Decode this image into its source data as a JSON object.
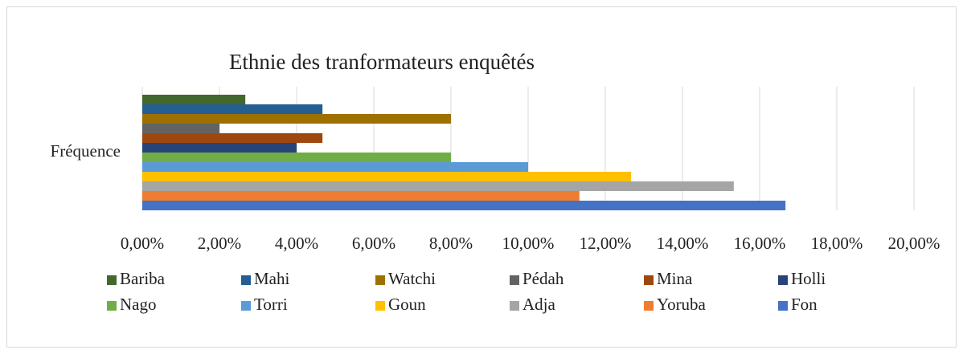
{
  "chart_data": {
    "type": "bar",
    "orientation": "horizontal",
    "title": "Ethnie des tranformateurs enquêtés",
    "categories": [
      "Fréquence"
    ],
    "series": [
      {
        "name": "Bariba",
        "color": "#43682b",
        "values": [
          2.67
        ]
      },
      {
        "name": "Mahi",
        "color": "#255e91",
        "values": [
          4.67
        ]
      },
      {
        "name": "Watchi",
        "color": "#9e7000",
        "values": [
          8
        ]
      },
      {
        "name": "Pédah",
        "color": "#636363",
        "values": [
          2
        ]
      },
      {
        "name": "Mina",
        "color": "#9e480e",
        "values": [
          4.67
        ]
      },
      {
        "name": "Holli",
        "color": "#264478",
        "values": [
          4
        ]
      },
      {
        "name": "Nago",
        "color": "#70ad47",
        "values": [
          8
        ]
      },
      {
        "name": "Torri",
        "color": "#5b9bd5",
        "values": [
          10
        ]
      },
      {
        "name": "Goun",
        "color": "#ffc000",
        "values": [
          12.67
        ]
      },
      {
        "name": "Adja",
        "color": "#a5a5a5",
        "values": [
          15.33
        ]
      },
      {
        "name": "Yoruba",
        "color": "#ed7d31",
        "values": [
          11.33
        ]
      },
      {
        "name": "Fon",
        "color": "#4472c4",
        "values": [
          16.67
        ]
      }
    ],
    "xlim": [
      0,
      20
    ],
    "xticks": [
      {
        "value": 0,
        "label": "0,00%"
      },
      {
        "value": 2,
        "label": "2,00%"
      },
      {
        "value": 4,
        "label": "4,00%"
      },
      {
        "value": 6,
        "label": "6,00%"
      },
      {
        "value": 8,
        "label": "8,00%"
      },
      {
        "value": 10,
        "label": "10,00%"
      },
      {
        "value": 12,
        "label": "12,00%"
      },
      {
        "value": 14,
        "label": "14,00%"
      },
      {
        "value": 16,
        "label": "16,00%"
      },
      {
        "value": 18,
        "label": "18,00%"
      },
      {
        "value": 20,
        "label": "20,00%"
      }
    ],
    "grid": true,
    "legend": "bottom"
  }
}
